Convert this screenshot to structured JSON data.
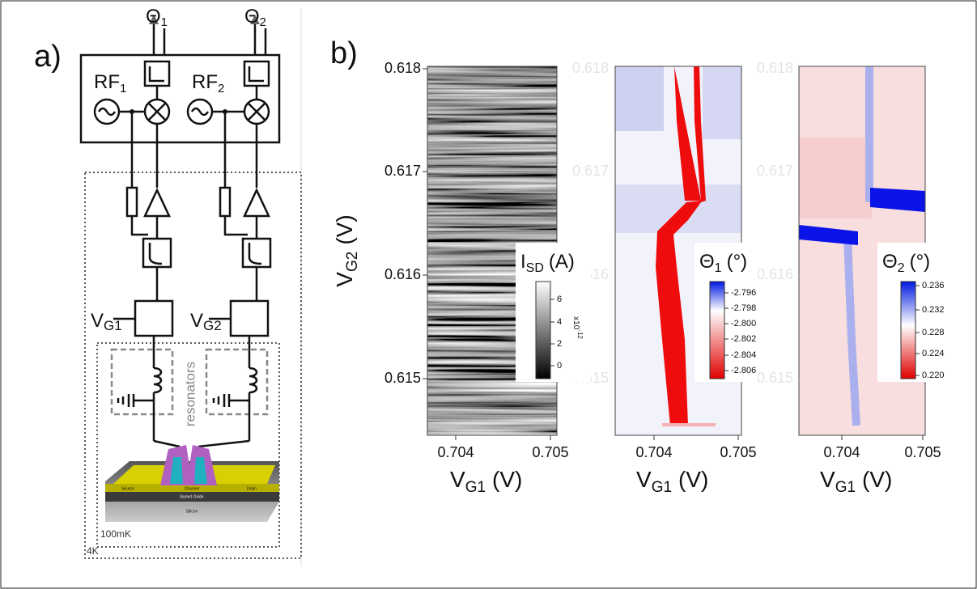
{
  "panel_a": {
    "label": "a)",
    "outputs": [
      {
        "main": "Θ",
        "sub": "1"
      },
      {
        "main": "Θ",
        "sub": "2"
      }
    ],
    "sources": [
      {
        "main": "RF",
        "sub": "1"
      },
      {
        "main": "RF",
        "sub": "2"
      }
    ],
    "gates": [
      {
        "main": "V",
        "sub": "G1"
      },
      {
        "main": "V",
        "sub": "G2"
      }
    ],
    "resonators": "resonators",
    "device": {
      "source": "Source",
      "channel": "Channel",
      "drain": "Drain",
      "oxide": "Buried Oxide",
      "substrate": "Silicon"
    },
    "stages": [
      "100mK",
      "4K"
    ]
  },
  "panel_b": {
    "label": "b)",
    "y_axis": {
      "main": "V",
      "sub": "G2",
      "unit": "(V)"
    },
    "yticks": [
      "0.618",
      "0.617",
      "0.616",
      "0.615"
    ],
    "xticks": [
      "0.704",
      "0.705"
    ],
    "maps": [
      {
        "x_axis": {
          "main": "V",
          "sub": "G1",
          "unit": "(V)"
        },
        "colorbar": {
          "title": {
            "main": "I",
            "sub": "SD",
            "unit": "(A)"
          },
          "ticks": [
            "6",
            "4",
            "2",
            "0"
          ],
          "scale": {
            "main": "x10",
            "sup": "-12"
          }
        }
      },
      {
        "x_axis": {
          "main": "V",
          "sub": "G1",
          "unit": "(V)"
        },
        "colorbar": {
          "title": {
            "main": "Θ",
            "sub": "1",
            "unit": "(°)"
          },
          "ticks": [
            "-2.796",
            "-2.798",
            "-2.800",
            "-2.802",
            "-2.804",
            "-2.806"
          ]
        }
      },
      {
        "x_axis": {
          "main": "V",
          "sub": "G1",
          "unit": "(V)"
        },
        "colorbar": {
          "title": {
            "main": "Θ",
            "sub": "2",
            "unit": "(°)"
          },
          "ticks": [
            "0.236",
            "0.232",
            "0.228",
            "0.224",
            "0.220"
          ]
        }
      }
    ]
  }
}
